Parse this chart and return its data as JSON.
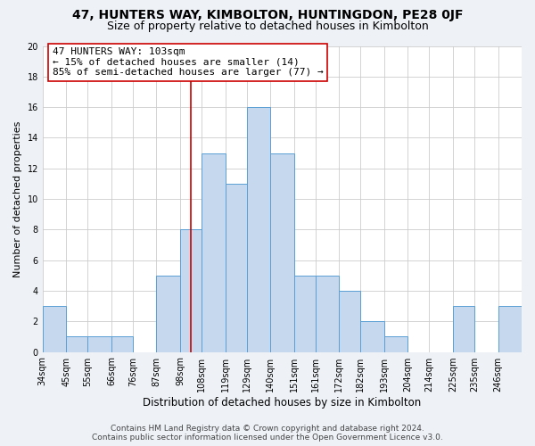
{
  "title": "47, HUNTERS WAY, KIMBOLTON, HUNTINGDON, PE28 0JF",
  "subtitle": "Size of property relative to detached houses in Kimbolton",
  "xlabel": "Distribution of detached houses by size in Kimbolton",
  "ylabel": "Number of detached properties",
  "footer_line1": "Contains HM Land Registry data © Crown copyright and database right 2024.",
  "footer_line2": "Contains public sector information licensed under the Open Government Licence v3.0.",
  "bin_labels": [
    "34sqm",
    "45sqm",
    "55sqm",
    "66sqm",
    "76sqm",
    "87sqm",
    "98sqm",
    "108sqm",
    "119sqm",
    "129sqm",
    "140sqm",
    "151sqm",
    "161sqm",
    "172sqm",
    "182sqm",
    "193sqm",
    "204sqm",
    "214sqm",
    "225sqm",
    "235sqm",
    "246sqm"
  ],
  "values": [
    3,
    1,
    1,
    1,
    0,
    5,
    8,
    13,
    11,
    16,
    13,
    5,
    5,
    4,
    2,
    1,
    0,
    0,
    3,
    0,
    3
  ],
  "bar_color": "#c5d8ed",
  "bar_edge_color": "#5a9fd4",
  "annotation_line_color": "#cc0000",
  "annotation_box_text": "47 HUNTERS WAY: 103sqm\n← 15% of detached houses are smaller (14)\n85% of semi-detached houses are larger (77) →",
  "ylim": [
    0,
    20
  ],
  "yticks": [
    0,
    2,
    4,
    6,
    8,
    10,
    12,
    14,
    16,
    18,
    20
  ],
  "background_color": "#eef2f7",
  "plot_background_color": "#ffffff",
  "grid_color": "#cccccc",
  "title_fontsize": 10,
  "subtitle_fontsize": 9,
  "xlabel_fontsize": 8.5,
  "ylabel_fontsize": 8,
  "tick_fontsize": 7,
  "annotation_fontsize": 8,
  "footer_fontsize": 6.5
}
